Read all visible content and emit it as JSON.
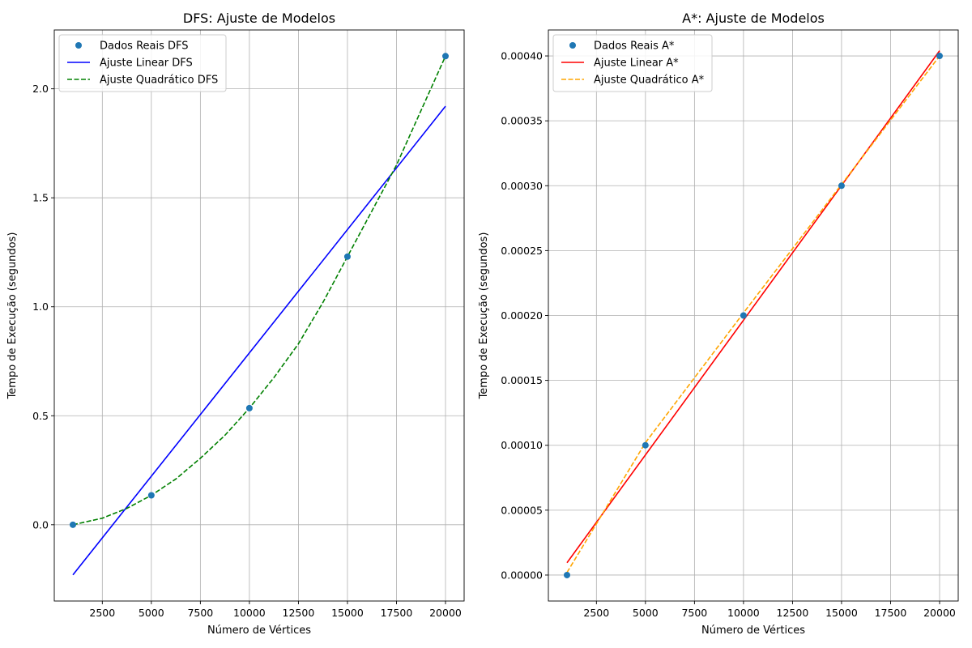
{
  "chart_data": [
    {
      "type": "line",
      "title": "DFS: Ajuste de Modelos",
      "xlabel": "Número de Vértices",
      "ylabel": "Tempo de Execução (segundos)",
      "xlim": [
        50,
        20950
      ],
      "ylim": [
        -0.35,
        2.27
      ],
      "xticks": [
        2500,
        5000,
        7500,
        10000,
        12500,
        15000,
        17500,
        20000
      ],
      "yticks": [
        0.0,
        0.5,
        1.0,
        1.5,
        2.0
      ],
      "xtick_labels": [
        "2500",
        "5000",
        "7500",
        "10000",
        "12500",
        "15000",
        "17500",
        "20000"
      ],
      "ytick_labels": [
        "0.0",
        "0.5",
        "1.0",
        "1.5",
        "2.0"
      ],
      "grid": true,
      "legend_position": "top-left",
      "series": [
        {
          "name": "Dados Reais DFS",
          "kind": "scatter",
          "color": "#1f77b4",
          "x": [
            1000,
            5000,
            10000,
            15000,
            20000
          ],
          "y": [
            0.0,
            0.135,
            0.535,
            1.23,
            2.15
          ]
        },
        {
          "name": "Ajuste Linear DFS",
          "kind": "line",
          "color": "#0000ff",
          "dash": "solid",
          "x": [
            1000,
            20000
          ],
          "y": [
            -0.23,
            1.92
          ]
        },
        {
          "name": "Ajuste Quadrático DFS",
          "kind": "line",
          "color": "#008000",
          "dash": "dashed",
          "x": [
            1000,
            2500,
            3750,
            5000,
            6250,
            7500,
            8750,
            10000,
            11250,
            12500,
            13750,
            15000,
            16250,
            17500,
            18750,
            20000
          ],
          "y": [
            0.0,
            0.03,
            0.075,
            0.135,
            0.21,
            0.305,
            0.41,
            0.535,
            0.675,
            0.83,
            1.02,
            1.23,
            1.44,
            1.65,
            1.9,
            2.15
          ]
        }
      ]
    },
    {
      "type": "line",
      "title": "A*: Ajuste de Modelos",
      "xlabel": "Número de Vértices",
      "ylabel": "Tempo de Execução (segundos)",
      "xlim": [
        50,
        20950
      ],
      "ylim": [
        -2e-05,
        0.00042
      ],
      "xticks": [
        2500,
        5000,
        7500,
        10000,
        12500,
        15000,
        17500,
        20000
      ],
      "yticks": [
        0.0,
        5e-05,
        0.0001,
        0.00015,
        0.0002,
        0.00025,
        0.0003,
        0.00035,
        0.0004
      ],
      "xtick_labels": [
        "2500",
        "5000",
        "7500",
        "10000",
        "12500",
        "15000",
        "17500",
        "20000"
      ],
      "ytick_labels": [
        "0.00000",
        "0.00005",
        "0.00010",
        "0.00015",
        "0.00020",
        "0.00025",
        "0.00030",
        "0.00035",
        "0.00040"
      ],
      "grid": true,
      "legend_position": "top-left",
      "series": [
        {
          "name": "Dados Reais A*",
          "kind": "scatter",
          "color": "#1f77b4",
          "x": [
            1000,
            5000,
            10000,
            15000,
            20000
          ],
          "y": [
            0.0,
            0.0001,
            0.0002,
            0.0003,
            0.0004
          ]
        },
        {
          "name": "Ajuste Linear A*",
          "kind": "line",
          "color": "#ff0000",
          "dash": "solid",
          "x": [
            1000,
            20000
          ],
          "y": [
            9.5e-06,
            0.000404
          ]
        },
        {
          "name": "Ajuste Quadrático A*",
          "kind": "line",
          "color": "#ffa500",
          "dash": "dashed",
          "x": [
            1000,
            5000,
            10000,
            15000,
            20000
          ],
          "y": [
            2e-06,
            0.000102,
            0.000202,
            0.000301,
            0.0004
          ]
        }
      ]
    }
  ]
}
